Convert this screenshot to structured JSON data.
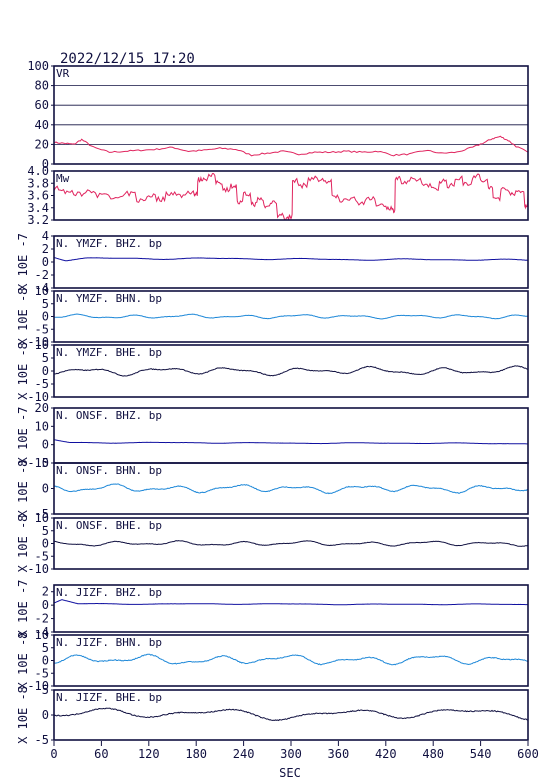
{
  "header": {
    "timestamp": "2022/12/15  17:20"
  },
  "chart_data": {
    "type": "line",
    "xlabel": "SEC",
    "xlim": [
      0,
      600
    ],
    "xticks": [
      "0",
      "60",
      "120",
      "180",
      "240",
      "300",
      "360",
      "420",
      "480",
      "540",
      "600"
    ],
    "panels": [
      {
        "id": "vr",
        "label": "VR",
        "ylim": [
          0,
          100
        ],
        "color": "#e0245e",
        "yticks": [
          "0",
          "20",
          "40",
          "60",
          "80",
          "100"
        ],
        "tick_values": [
          0,
          20,
          40,
          60,
          80,
          100
        ],
        "grid": true,
        "unit_label": "",
        "series": {
          "x": [
            0,
            15,
            25,
            35,
            50,
            70,
            90,
            110,
            130,
            150,
            170,
            190,
            210,
            230,
            250,
            270,
            290,
            310,
            330,
            350,
            370,
            390,
            410,
            430,
            450,
            470,
            490,
            510,
            530,
            545,
            555,
            565,
            575,
            585,
            600
          ],
          "y": [
            22,
            21,
            20,
            25,
            17,
            12,
            13,
            14,
            15,
            17,
            13,
            14,
            16,
            15,
            9,
            11,
            13,
            10,
            12,
            12,
            13,
            12,
            13,
            9,
            10,
            14,
            11,
            12,
            17,
            22,
            26,
            28,
            24,
            18,
            12
          ]
        }
      },
      {
        "id": "mw",
        "label": "Mw",
        "ylim": [
          3.2,
          4.0
        ],
        "color": "#e0245e",
        "yticks": [
          "3.2",
          "3.4",
          "3.6",
          "3.8",
          "4.0"
        ],
        "tick_values": [
          3.2,
          3.4,
          3.6,
          3.8,
          4.0
        ],
        "grid": false,
        "unit_label": "",
        "series": {
          "x": [
            0,
            12,
            25,
            40,
            55,
            72,
            90,
            105,
            118,
            130,
            142,
            155,
            168,
            178,
            182,
            188,
            196,
            205,
            214,
            224,
            232,
            240,
            250,
            258,
            266,
            274,
            283,
            292,
            298,
            302,
            310,
            322,
            335,
            345,
            352,
            362,
            372,
            384,
            396,
            408,
            420,
            428,
            432,
            440,
            452,
            466,
            478,
            488,
            498,
            508,
            518,
            530,
            540,
            550,
            556,
            566,
            578,
            588,
            596,
            600
          ],
          "y": [
            3.72,
            3.66,
            3.62,
            3.68,
            3.6,
            3.55,
            3.63,
            3.52,
            3.6,
            3.54,
            3.64,
            3.6,
            3.66,
            3.62,
            3.86,
            3.88,
            3.92,
            3.82,
            3.7,
            3.76,
            3.48,
            3.62,
            3.46,
            3.54,
            3.42,
            3.5,
            3.28,
            3.22,
            3.26,
            3.84,
            3.76,
            3.88,
            3.85,
            3.82,
            3.58,
            3.52,
            3.56,
            3.48,
            3.54,
            3.46,
            3.4,
            3.36,
            3.88,
            3.8,
            3.86,
            3.78,
            3.7,
            3.84,
            3.76,
            3.88,
            3.8,
            3.92,
            3.84,
            3.72,
            3.56,
            3.7,
            3.64,
            3.66,
            3.44,
            3.62
          ]
        }
      },
      {
        "id": "ymzf-bhz",
        "label": "N. YMZF. BHZ. bp",
        "ylim": [
          -4,
          4
        ],
        "color": "#1010a0",
        "yticks": [
          "-4",
          "-2",
          "0",
          "2",
          "4"
        ],
        "tick_values": [
          -4,
          -2,
          0,
          2,
          4
        ],
        "unit_label": "X 10E -7",
        "amplitude": 0.15,
        "freq": 0.05,
        "offset": 0.3,
        "wave": [
          [
            0,
            0.7
          ],
          [
            15,
            0.2
          ],
          [
            40,
            0.5
          ],
          [
            600,
            0.2
          ]
        ]
      },
      {
        "id": "ymzf-bhn",
        "label": "N. YMZF. BHN. bp",
        "ylim": [
          -10,
          10
        ],
        "color": "#1e88d8",
        "yticks": [
          "-10",
          "-5",
          "0",
          "5",
          "10"
        ],
        "tick_values": [
          -10,
          -5,
          0,
          5,
          10
        ],
        "unit_label": "X 10E -8",
        "amplitude": 0.9,
        "freq": 0.09,
        "offset": 0,
        "wave": []
      },
      {
        "id": "ymzf-bhe",
        "label": "N. YMZF. BHE. bp",
        "ylim": [
          -10,
          10
        ],
        "color": "#101040",
        "yticks": [
          "-10",
          "-5",
          "0",
          "5",
          "10"
        ],
        "tick_values": [
          -10,
          -5,
          0,
          5,
          10
        ],
        "unit_label": "X 10E -8",
        "amplitude": 1.8,
        "freq": 0.07,
        "offset": 0,
        "wave": []
      },
      {
        "id": "onsf-bhz",
        "label": "N. ONSF. BHZ. bp",
        "ylim": [
          -10,
          20
        ],
        "color": "#1010a0",
        "yticks": [
          "-10",
          "0",
          "10",
          "20"
        ],
        "tick_values": [
          -10,
          0,
          10,
          20
        ],
        "unit_label": "X 10E -7",
        "amplitude": 0.3,
        "freq": 0.05,
        "offset": 0.5,
        "wave": [
          [
            0,
            2.5
          ],
          [
            20,
            1
          ],
          [
            600,
            0.5
          ]
        ]
      },
      {
        "id": "onsf-bhn",
        "label": "N. ONSF. BHN. bp",
        "ylim": [
          -5,
          5
        ],
        "color": "#1e88d8",
        "yticks": [
          "-5",
          "0",
          "5"
        ],
        "tick_values": [
          -5,
          0,
          5
        ],
        "unit_label": "X 10E -8",
        "amplitude": 0.9,
        "freq": 0.08,
        "offset": 0,
        "wave": []
      },
      {
        "id": "onsf-bhe",
        "label": "N. ONSF. BHE. bp",
        "ylim": [
          -10,
          10
        ],
        "color": "#101040",
        "yticks": [
          "-10",
          "-5",
          "0",
          "5",
          "10"
        ],
        "tick_values": [
          -10,
          -5,
          0,
          5,
          10
        ],
        "unit_label": "X 10E -8",
        "amplitude": 1.1,
        "freq": 0.08,
        "offset": 0,
        "wave": []
      },
      {
        "id": "jizf-bhz",
        "label": "N. JIZF. BHZ. bp",
        "ylim": [
          -4,
          3
        ],
        "color": "#1010a0",
        "yticks": [
          "-4",
          "-2",
          "0",
          "2"
        ],
        "tick_values": [
          -4,
          -2,
          0,
          2
        ],
        "unit_label": "X 10E -7",
        "amplitude": 0.08,
        "freq": 0.05,
        "offset": 0,
        "wave": [
          [
            0,
            0.3
          ],
          [
            10,
            0.8
          ],
          [
            30,
            0.2
          ],
          [
            600,
            0.1
          ]
        ]
      },
      {
        "id": "jizf-bhn",
        "label": "N. JIZF. BHN. bp",
        "ylim": [
          -10,
          10
        ],
        "color": "#1e88d8",
        "yticks": [
          "-10",
          "-5",
          "0",
          "5",
          "10"
        ],
        "tick_values": [
          -10,
          -5,
          0,
          5,
          10
        ],
        "unit_label": "X 10E -8",
        "amplitude": 2.2,
        "freq": 0.07,
        "offset": 1,
        "wave": []
      },
      {
        "id": "jizf-bhe",
        "label": "N. JIZF. BHE. bp",
        "ylim": [
          -5,
          5
        ],
        "color": "#101040",
        "yticks": [
          "-5",
          "0",
          "5"
        ],
        "tick_values": [
          -5,
          0,
          5
        ],
        "unit_label": "X 10E -8",
        "amplitude": 1.3,
        "freq": 0.04,
        "offset": 0.8,
        "wave": []
      }
    ]
  }
}
